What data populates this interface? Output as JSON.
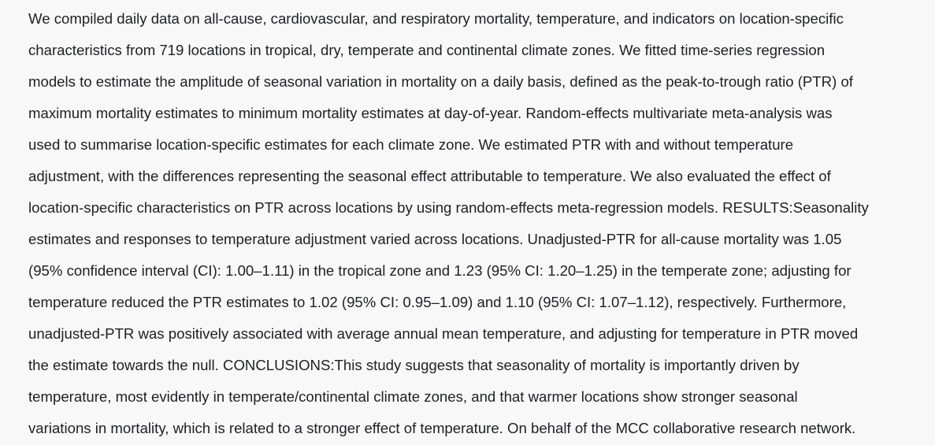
{
  "abstract": {
    "lines": [
      "We compiled daily data on all-cause, cardiovascular, and respiratory mortality, temperature, and indicators on location-specific",
      "characteristics from 719 locations in tropical, dry, temperate and continental climate zones. We fitted time-series regression",
      "models to estimate the amplitude of seasonal variation in mortality on a daily basis, defined as the peak-to-trough ratio (PTR) of",
      "maximum mortality estimates to minimum mortality estimates at day-of-year. Random-effects multivariate meta-analysis was",
      "used to summarise location-specific estimates for each climate zone. We estimated PTR with and without temperature",
      "adjustment, with the differences representing the seasonal effect attributable to temperature. We also evaluated the effect of",
      "location-specific characteristics on PTR across locations by using random-effects meta-regression models. RESULTS:Seasonality",
      "estimates and responses to temperature adjustment varied across locations. Unadjusted-PTR for all-cause mortality was 1.05",
      "(95% confidence interval (CI): 1.00–1.11) in the tropical zone and 1.23 (95% CI: 1.20–1.25) in the temperate zone; adjusting for",
      "temperature reduced the PTR estimates to 1.02 (95% CI: 0.95–1.09) and 1.10 (95% CI: 1.07–1.12), respectively. Furthermore,",
      "unadjusted-PTR was positively associated with average annual mean temperature, and adjusting for temperature in PTR moved",
      "the estimate towards the null. CONCLUSIONS:This study suggests that seasonality of mortality is importantly driven by",
      "temperature, most evidently in temperate/continental climate zones, and that warmer locations show stronger seasonal",
      "variations in mortality, which is related to a stronger effect of temperature. On behalf of the MCC collaborative research network."
    ]
  }
}
